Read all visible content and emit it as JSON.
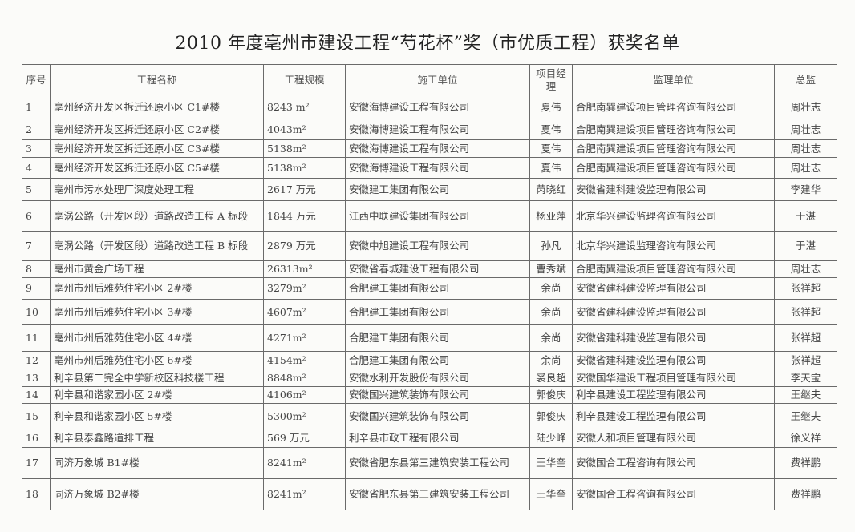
{
  "title": "2010 年度亳州市建设工程“芍花杯”奖（市优质工程）获奖名单",
  "table": {
    "headers": [
      "序号",
      "工程名称",
      "工程规模",
      "施工单位",
      "项目经理",
      "监理单位",
      "总监"
    ],
    "rows": [
      [
        "1",
        "亳州经济开发区拆迁还原小区 C1#楼",
        "8243 m²",
        "安徽海博建设工程有限公司",
        "夏伟",
        "合肥南巽建设项目管理咨询有限公司",
        "周壮志"
      ],
      [
        "2",
        "亳州经济开发区拆迁还原小区 C2#楼",
        "4043m²",
        "安徽海博建设工程有限公司",
        "夏伟",
        "合肥南巽建设项目管理咨询有限公司",
        "周壮志"
      ],
      [
        "3",
        "亳州经济开发区拆迁还原小区 C3#楼",
        "5138m²",
        "安徽海博建设工程有限公司",
        "夏伟",
        "合肥南巽建设项目管理咨询有限公司",
        "周壮志"
      ],
      [
        "4",
        "亳州经济开发区拆迁还原小区 C5#楼",
        "5138m²",
        "安徽海博建设工程有限公司",
        "夏伟",
        "合肥南巽建设项目管理咨询有限公司",
        "周壮志"
      ],
      [
        "5",
        "亳州市污水处理厂深度处理工程",
        "2617 万元",
        "安徽建工集团有限公司",
        "芮晓红",
        "安徽省建科建设监理有限公司",
        "李建华"
      ],
      [
        "6",
        "亳涡公路（开发区段）道路改造工程 A 标段",
        "1844 万元",
        "江西中联建设集团有限公司",
        "杨亚萍",
        "北京华兴建设监理咨询有限公司",
        "于湛"
      ],
      [
        "7",
        "亳涡公路（开发区段）道路改造工程 B 标段",
        "2879 万元",
        "安徽中旭建设工程有限公司",
        "孙凡",
        "北京华兴建设监理咨询有限公司",
        "于湛"
      ],
      [
        "8",
        "亳州市黄金广场工程",
        "26313m²",
        "安徽省春城建设工程有限公司",
        "曹秀斌",
        "合肥南巽建设项目管理咨询有限公司",
        "周壮志"
      ],
      [
        "9",
        "亳州市州后雅苑住宅小区 2#楼",
        "3279m²",
        "合肥建工集团有限公司",
        "余尚",
        "安徽省建科建设监理有限公司",
        "张祥超"
      ],
      [
        "10",
        "亳州市州后雅苑住宅小区 3#楼",
        "4607m²",
        "合肥建工集团有限公司",
        "余尚",
        "安徽省建科建设监理有限公司",
        "张祥超"
      ],
      [
        "11",
        "亳州市州后雅苑住宅小区 4#楼",
        "4271m²",
        "合肥建工集团有限公司",
        "余尚",
        "安徽省建科建设监理有限公司",
        "张祥超"
      ],
      [
        "12",
        "亳州市州后雅苑住宅小区 6#楼",
        "4154m²",
        "合肥建工集团有限公司",
        "余尚",
        "安徽省建科建设监理有限公司",
        "张祥超"
      ],
      [
        "13",
        "利辛县第二完全中学新校区科技楼工程",
        "8848m²",
        "安徽水利开发股份有限公司",
        "裘良超",
        "安徽国华建设工程项目管理有限公司",
        "李天宝"
      ],
      [
        "14",
        "利辛县和谐家园小区 2#楼",
        "4106m²",
        "安徽国兴建筑装饰有限公司",
        "郭俊庆",
        "利辛县建设工程监理有限公司",
        "王继夫"
      ],
      [
        "15",
        "利辛县和谐家园小区 5#楼",
        "5300m²",
        "安徽国兴建筑装饰有限公司",
        "郭俊庆",
        "利辛县建设工程监理有限公司",
        "王继夫"
      ],
      [
        "16",
        "利辛县泰鑫路道排工程",
        "569 万元",
        "利辛县市政工程有限公司",
        "陆少峰",
        "安徽人和项目管理有限公司",
        "徐义祥"
      ],
      [
        "17",
        "同济万象城 B1#楼",
        "8241m²",
        "安徽省肥东县第三建筑安装工程公司",
        "王华奎",
        "安徽国合工程咨询有限公司",
        "费祥鹏"
      ],
      [
        "18",
        "同济万象城 B2#楼",
        "8241m²",
        "安徽省肥东县第三建筑安装工程公司",
        "王华奎",
        "安徽国合工程咨询有限公司",
        "费祥鹏"
      ]
    ]
  }
}
